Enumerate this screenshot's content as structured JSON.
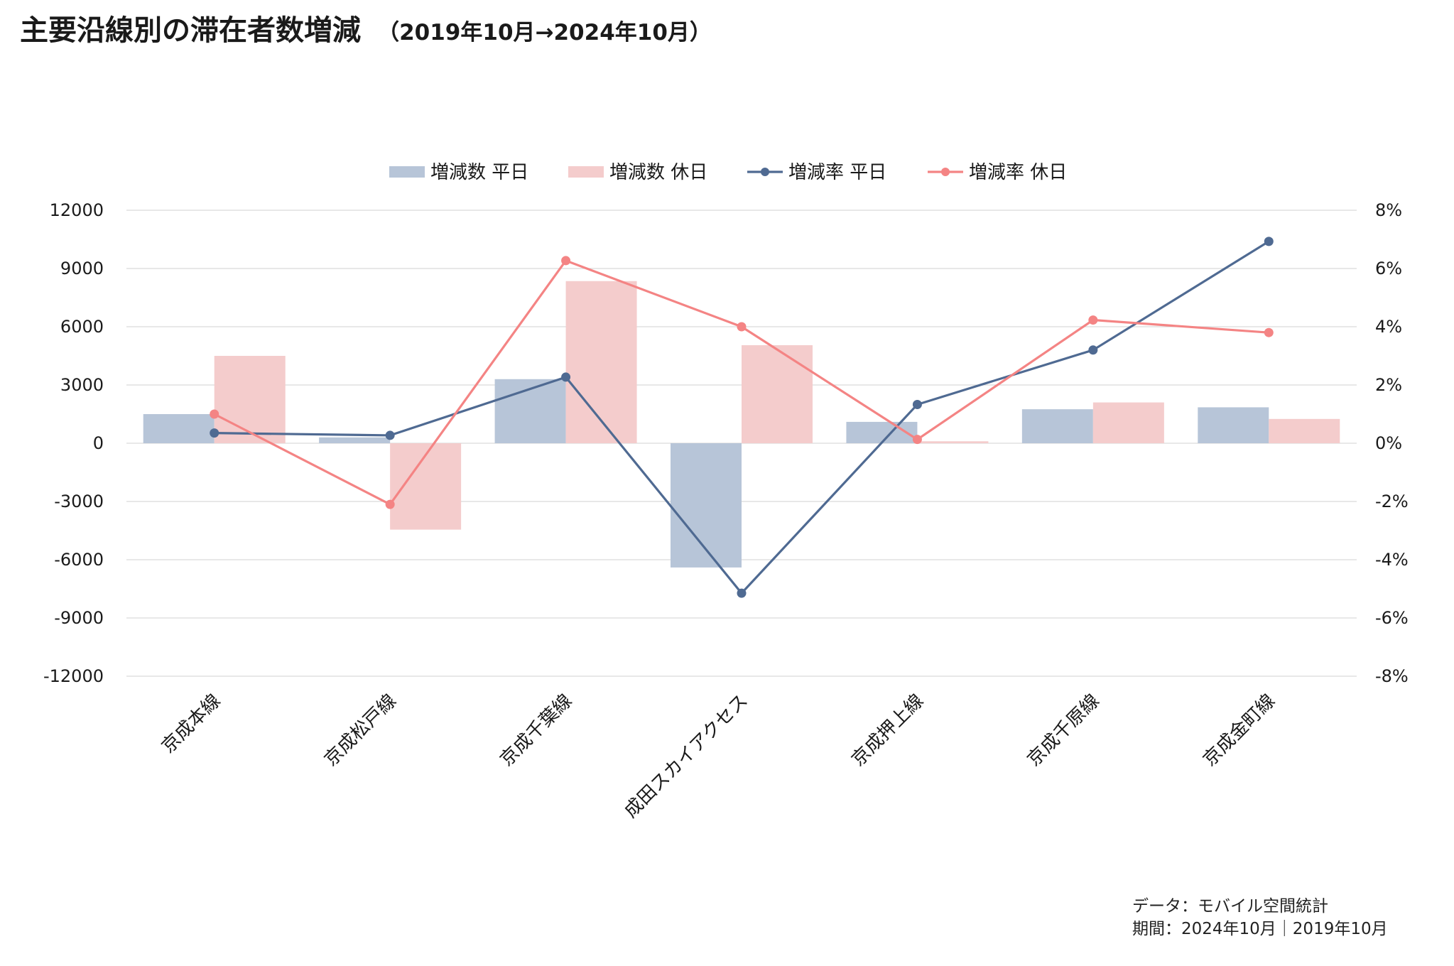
{
  "title": "主要沿線別の滞在者数増減",
  "subtitle": "（2019年10月→2024年10月）",
  "note": {
    "line1": "データ：モバイル空間統計",
    "line2": "期間：2024年10月｜2019年10月"
  },
  "colors": {
    "bar_weekday": "#b7c5d8",
    "bar_holiday": "#f4cccc",
    "line_weekday": "#4f6a92",
    "line_holiday": "#f48484",
    "grid": "#d9d9d9"
  },
  "chart_data": {
    "type": "bar",
    "categories": [
      "京成本線",
      "京成松戸線",
      "京成千葉線",
      "成田スカイアクセス",
      "京成押上線",
      "京成千原線",
      "京成金町線"
    ],
    "series": [
      {
        "name": "増減数 平日",
        "type": "bar",
        "axis": "left",
        "values": [
          1500,
          300,
          3300,
          -6400,
          1100,
          1750,
          1850
        ]
      },
      {
        "name": "増減数 休日",
        "type": "bar",
        "axis": "left",
        "values": [
          4500,
          -4450,
          8350,
          5050,
          100,
          2100,
          1250
        ]
      },
      {
        "name": "増減率 平日",
        "type": "line",
        "axis": "right",
        "values": [
          0.35,
          0.27,
          2.27,
          -5.15,
          1.33,
          3.2,
          6.93
        ]
      },
      {
        "name": "増減率 休日",
        "type": "line",
        "axis": "right",
        "values": [
          1.0,
          -2.1,
          6.27,
          4.0,
          0.13,
          4.23,
          3.8
        ]
      }
    ],
    "y_left": {
      "min": -12000,
      "max": 12000,
      "ticks": [
        "12000",
        "9000",
        "6000",
        "3000",
        "0",
        "-3000",
        "-6000",
        "-9000",
        "-12000"
      ]
    },
    "y_right": {
      "min": -8,
      "max": 8,
      "ticks": [
        "8%",
        "6%",
        "4%",
        "2%",
        "0%",
        "-2%",
        "-4%",
        "-6%",
        "-8%"
      ]
    },
    "grid": true,
    "legend_position": "top-center"
  }
}
